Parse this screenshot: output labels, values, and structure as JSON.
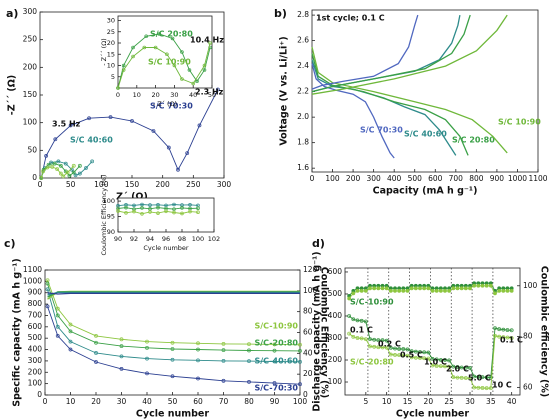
{
  "chart_data": [
    {
      "type": "line",
      "panel": "a)",
      "xlabel": "Z´ (Ω)",
      "ylabel": "-Z´´ (Ω)",
      "xlim": [
        0,
        300
      ],
      "ylim": [
        0,
        300
      ],
      "xticks": [
        0,
        50,
        100,
        150,
        200,
        250,
        300
      ],
      "yticks": [
        0,
        50,
        100,
        150,
        200,
        250,
        300
      ],
      "series": [
        {
          "name": "S/C 70:30",
          "color": "#2b3f91",
          "marker": "circle",
          "x": [
            2,
            10,
            25,
            50,
            80,
            115,
            150,
            185,
            210,
            225,
            240,
            260,
            290
          ],
          "values": [
            0,
            40,
            70,
            95,
            108,
            110,
            103,
            85,
            55,
            15,
            45,
            95,
            160
          ]
        },
        {
          "name": "S/C 40:60",
          "color": "#2e8b8b",
          "marker": "circle",
          "x": [
            2,
            8,
            18,
            30,
            42,
            52,
            58,
            65,
            75,
            85
          ],
          "values": [
            0,
            18,
            28,
            30,
            26,
            15,
            5,
            8,
            18,
            30
          ]
        },
        {
          "color": "#3aa046",
          "marker": "circle",
          "x": [
            2,
            6,
            14,
            24,
            34,
            42,
            48,
            55,
            65
          ],
          "values": [
            0,
            15,
            24,
            26,
            22,
            12,
            4,
            10,
            22
          ]
        },
        {
          "color": "#8dc63f",
          "marker": "circle",
          "x": [
            2,
            5,
            12,
            20,
            28,
            34,
            38,
            45,
            55
          ],
          "values": [
            0,
            12,
            19,
            20,
            16,
            8,
            3,
            10,
            22
          ]
        }
      ],
      "annotations": [
        "2.3 Hz",
        "3.5 Hz"
      ]
    },
    {
      "type": "line",
      "xlabel": "- Z´ (Ω)",
      "ylabel": "- Z´´ (Ω)",
      "xlim": [
        0,
        50
      ],
      "ylim": [
        0,
        32
      ],
      "xticks": [
        0,
        10,
        20,
        30,
        40,
        50
      ],
      "yticks": [
        5,
        10,
        15,
        20,
        25,
        30
      ],
      "series": [
        {
          "name": "S/C 20:80",
          "color": "#3aa046",
          "marker": "circle",
          "x": [
            0,
            3,
            8,
            15,
            22,
            29,
            34,
            38,
            42,
            46,
            49
          ],
          "values": [
            0,
            10,
            18,
            23,
            24,
            22,
            16,
            8,
            3,
            8,
            18
          ]
        },
        {
          "name": "S/C 10:90",
          "color": "#6fb83a",
          "marker": "circle",
          "x": [
            0,
            3,
            8,
            14,
            20,
            26,
            30,
            34,
            40,
            46,
            49
          ],
          "values": [
            0,
            8,
            14,
            18,
            18,
            15,
            10,
            4,
            2,
            10,
            20
          ]
        }
      ],
      "annotations": [
        "10.4 Hz"
      ]
    },
    {
      "type": "line",
      "panel": "b)",
      "title": "1st cycle; 0.1 C",
      "xlabel": "Capacity (mA h g⁻¹)",
      "ylabel": "Voltage (V vs. Li/Li⁺)",
      "xlim": [
        0,
        1100
      ],
      "ylim": [
        1.57,
        2.84
      ],
      "xticks": [
        0,
        100,
        200,
        300,
        400,
        500,
        600,
        700,
        800,
        900,
        1000,
        1100
      ],
      "yticks": [
        1.6,
        1.8,
        {
          "value": 2,
          "label": "2.0"
        },
        2.2,
        2.4,
        2.6,
        2.8
      ],
      "series": [
        {
          "name": "S/C 70:30",
          "color": "#5068c0",
          "x": [
            0,
            20,
            60,
            120,
            200,
            260,
            300,
            340,
            380,
            400
          ],
          "values": [
            2.42,
            2.3,
            2.24,
            2.21,
            2.18,
            2.12,
            2.0,
            1.85,
            1.72,
            1.68
          ]
        },
        {
          "name": "S/C 40:60",
          "color": "#2e8b8b",
          "x": [
            0,
            30,
            100,
            200,
            350,
            450,
            550,
            620,
            680,
            700
          ],
          "values": [
            2.45,
            2.3,
            2.24,
            2.22,
            2.15,
            2.08,
            2.02,
            1.9,
            1.75,
            1.7
          ]
        },
        {
          "name": "S/C 20:80",
          "color": "#3aa046",
          "x": [
            0,
            30,
            100,
            250,
            400,
            550,
            650,
            720,
            760
          ],
          "values": [
            2.5,
            2.32,
            2.25,
            2.2,
            2.12,
            2.06,
            1.98,
            1.85,
            1.7
          ]
        },
        {
          "name": "S/C 10:90",
          "color": "#6fb83a",
          "x": [
            0,
            30,
            100,
            300,
            500,
            650,
            780,
            880,
            950
          ],
          "values": [
            2.55,
            2.35,
            2.27,
            2.2,
            2.12,
            2.06,
            1.98,
            1.85,
            1.72
          ]
        },
        {
          "color": "#5068c0",
          "x": [
            0,
            50,
            150,
            300,
            420,
            470,
            500,
            515
          ],
          "values": [
            2.22,
            2.25,
            2.28,
            2.32,
            2.42,
            2.55,
            2.72,
            2.8
          ]
        },
        {
          "color": "#2e8b8b",
          "x": [
            0,
            100,
            300,
            500,
            620,
            680,
            710,
            720
          ],
          "values": [
            2.2,
            2.24,
            2.3,
            2.36,
            2.45,
            2.58,
            2.72,
            2.8
          ]
        },
        {
          "color": "#3aa046",
          "x": [
            0,
            100,
            300,
            550,
            680,
            740,
            770
          ],
          "values": [
            2.2,
            2.24,
            2.3,
            2.38,
            2.5,
            2.65,
            2.8
          ]
        },
        {
          "color": "#6fb83a",
          "x": [
            0,
            150,
            400,
            650,
            800,
            900,
            950
          ],
          "values": [
            2.18,
            2.22,
            2.3,
            2.4,
            2.52,
            2.68,
            2.8
          ]
        }
      ],
      "annotations": []
    },
    {
      "type": "line",
      "panel": "c)",
      "xlabel": "Cycle number",
      "ylabel": "Specific capacity (mA h g⁻¹)",
      "y2label": "Coulombic Efficiency (%)",
      "xlim": [
        0,
        100
      ],
      "ylim": [
        0,
        1100
      ],
      "y2lim": [
        0,
        120
      ],
      "xticks": [
        0,
        10,
        20,
        30,
        40,
        50,
        60,
        70,
        80,
        90,
        100
      ],
      "yticks": [
        0,
        100,
        200,
        300,
        400,
        500,
        600,
        700,
        800,
        900,
        1000,
        1100
      ],
      "y2ticks": [
        0,
        20,
        40,
        60,
        80,
        100,
        120
      ],
      "x": [
        1,
        5,
        10,
        20,
        30,
        40,
        50,
        60,
        70,
        80,
        90,
        100
      ],
      "series": [
        {
          "name": "S/C-10:90",
          "color": "#8dc63f",
          "marker": "circle",
          "values": [
            1010,
            760,
            620,
            520,
            490,
            470,
            460,
            455,
            450,
            448,
            445,
            442
          ]
        },
        {
          "name": "S/C-20:80",
          "color": "#3aa046",
          "marker": "circle",
          "values": [
            980,
            700,
            560,
            460,
            430,
            415,
            405,
            400,
            395,
            392,
            390,
            388
          ]
        },
        {
          "name": "S/C-40:60",
          "color": "#2e8b8b",
          "marker": "circle",
          "values": [
            930,
            600,
            470,
            370,
            340,
            320,
            310,
            305,
            300,
            298,
            295,
            292
          ]
        },
        {
          "name": "S/C-70:30",
          "color": "#2b3f91",
          "marker": "circle",
          "values": [
            780,
            520,
            400,
            290,
            230,
            190,
            165,
            145,
            125,
            115,
            105,
            95
          ]
        },
        {
          "color": "#8dc63f",
          "axis": "y2",
          "values": [
            92,
            99,
            99.5,
            99.5,
            99.5,
            99.5,
            99.5,
            99.5,
            99.5,
            99.5,
            99.5,
            99.5
          ]
        },
        {
          "color": "#3aa046",
          "axis": "y2",
          "values": [
            94,
            99,
            99,
            99,
            99,
            99,
            99,
            99,
            99,
            99,
            99,
            99
          ]
        },
        {
          "color": "#2e8b8b",
          "axis": "y2",
          "values": [
            96,
            98.5,
            98.5,
            98.5,
            98.5,
            98.5,
            98.5,
            98.5,
            98.5,
            98.5,
            98.5,
            98.5
          ]
        },
        {
          "color": "#2b3f91",
          "axis": "y2",
          "values": [
            98,
            97,
            97.5,
            97.5,
            97.5,
            97.5,
            97.5,
            97.5,
            97.5,
            97.5,
            97.5,
            97.5
          ]
        }
      ],
      "annotations": []
    },
    {
      "type": "line",
      "xlabel": "Cycle number",
      "ylabel": "Coulombic Efficiency (%)",
      "xlim": [
        90,
        102
      ],
      "ylim": [
        90,
        101
      ],
      "xticks": [
        90,
        92,
        94,
        96,
        98,
        100,
        102
      ],
      "yticks": [
        90,
        95,
        100
      ],
      "x": [
        90,
        91,
        92,
        93,
        94,
        95,
        96,
        97,
        98,
        99,
        100
      ],
      "series": [
        {
          "color": "#2e8b8b",
          "marker": "circle",
          "values": [
            98.5,
            98.8,
            98.6,
            98.9,
            98.7,
            98.8,
            98.6,
            98.9,
            98.7,
            98.8,
            98.6
          ]
        },
        {
          "color": "#3aa046",
          "marker": "circle",
          "values": [
            97.6,
            97.9,
            97.4,
            97.8,
            97.5,
            97.9,
            97.6,
            97.4,
            97.8,
            97.6,
            97.7
          ]
        },
        {
          "color": "#8dc63f",
          "marker": "circle",
          "values": [
            96.8,
            96.2,
            96.6,
            95.9,
            96.5,
            96.1,
            96.7,
            96.3,
            96.0,
            96.6,
            96.4
          ]
        }
      ],
      "annotations": []
    },
    {
      "type": "line",
      "panel": "d)",
      "xlabel": "Cycle number",
      "ylabel": "Discharge capacity (mA h g⁻¹)",
      "y2label": "Coulombic efficiency (%)",
      "xlim": [
        0,
        42
      ],
      "ylim": [
        41,
        618
      ],
      "y2lim": [
        57,
        107
      ],
      "xticks": [
        5,
        10,
        15,
        20,
        25,
        30,
        35,
        40
      ],
      "yticks": [
        100,
        200,
        300,
        400,
        500,
        600
      ],
      "y2ticks": [
        60,
        80,
        100
      ],
      "x": [
        1,
        2,
        3,
        4,
        5,
        6,
        7,
        8,
        9,
        10,
        11,
        12,
        13,
        14,
        15,
        16,
        17,
        18,
        19,
        20,
        21,
        22,
        23,
        24,
        25,
        26,
        27,
        28,
        29,
        30,
        31,
        32,
        33,
        34,
        35,
        36,
        37,
        38,
        39,
        40
      ],
      "series": [
        {
          "name": "S/C-10:90",
          "color": "#2f8f3a",
          "marker": "circle",
          "values": [
            400,
            385,
            380,
            378,
            375,
            295,
            292,
            290,
            290,
            288,
            255,
            252,
            250,
            250,
            248,
            240,
            238,
            236,
            235,
            234,
            205,
            203,
            200,
            200,
            198,
            170,
            168,
            166,
            165,
            164,
            125,
            123,
            122,
            121,
            120,
            345,
            340,
            338,
            336,
            335
          ]
        },
        {
          "name": "S/C-20:80",
          "color": "#8dc63f",
          "marker": "circle",
          "values": [
            320,
            305,
            300,
            298,
            295,
            262,
            260,
            258,
            257,
            256,
            225,
            223,
            222,
            221,
            220,
            212,
            210,
            209,
            208,
            207,
            175,
            173,
            172,
            171,
            170,
            122,
            120,
            119,
            118,
            117,
            75,
            74,
            73,
            72,
            72,
            310,
            306,
            304,
            302,
            300
          ]
        },
        {
          "color": "#2f8f3a",
          "marker": "circle",
          "axis": "y2",
          "values": [
            96,
            98,
            99,
            99,
            99,
            100,
            100,
            100,
            100,
            100,
            99,
            99,
            99,
            99,
            99,
            100,
            100,
            100,
            100,
            100,
            99,
            99,
            99,
            99,
            99,
            100,
            100,
            100,
            100,
            100,
            101,
            101,
            101,
            101,
            101,
            98,
            99,
            99,
            99,
            99
          ]
        },
        {
          "color": "#8dc63f",
          "marker": "circle",
          "axis": "y2",
          "values": [
            95,
            97,
            98,
            98,
            98,
            99,
            99,
            99,
            99,
            99,
            98,
            98,
            98,
            98,
            98,
            99,
            99,
            99,
            99,
            99,
            98,
            98,
            98,
            98,
            98,
            99,
            99,
            99,
            99,
            99,
            100,
            100,
            100,
            100,
            100,
            97,
            98,
            98,
            98,
            98
          ]
        }
      ],
      "annotations": [
        "0.1 C",
        "0.2 C",
        "0.5 C",
        "1.0 C",
        "2.0 C",
        "5.0 C",
        "10 C",
        "0.1 C"
      ]
    }
  ]
}
